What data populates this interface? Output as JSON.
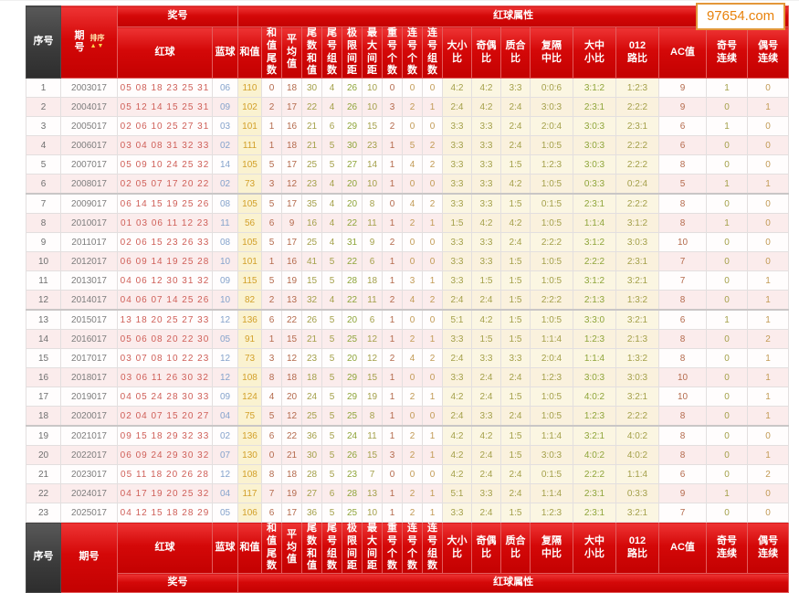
{
  "watermark": "97654.com",
  "header": {
    "xuhao": "序号",
    "qihao": "期号",
    "paixu": "排序",
    "sort_arrows": "▲▼",
    "jianghao": "奖号",
    "hongqiu": "红球",
    "lanqiu": "蓝球",
    "shuxing": "红球属性",
    "attr_cols": [
      [
        "和值"
      ],
      [
        "和值",
        "尾数"
      ],
      [
        "平均",
        "值"
      ],
      [
        "尾数",
        "和值"
      ],
      [
        "尾号",
        "组数"
      ],
      [
        "极限",
        "间距"
      ],
      [
        "最大",
        "间距"
      ],
      [
        "重号",
        "个数"
      ],
      [
        "连号",
        "个数"
      ],
      [
        "连号",
        "组数"
      ],
      [
        "大小",
        "比"
      ],
      [
        "奇偶",
        "比"
      ],
      [
        "质合",
        "比"
      ],
      [
        "复隔",
        "中比"
      ],
      [
        "大中",
        "小比"
      ],
      [
        "012",
        "路比"
      ],
      [
        "AC值"
      ],
      [
        "奇号",
        "连续"
      ],
      [
        "偶号",
        "连续"
      ]
    ]
  },
  "colors": {
    "header_red": "#d40808",
    "header_dark": "#3a3a3a",
    "red_ball": "#cf5f58",
    "blue_ball": "#85a3cc",
    "sum_text": "#d2a02a",
    "watermark": "#e8820c"
  },
  "rows": [
    [
      "1",
      "2003017",
      "05 08 18 23 25 31",
      "06",
      "110",
      "0",
      "18",
      "30",
      "4",
      "26",
      "10",
      "0",
      "0",
      "0",
      "4:2",
      "4:2",
      "3:3",
      "0:0:6",
      "3:1:2",
      "1:2:3",
      "9",
      "1",
      "0"
    ],
    [
      "2",
      "2004017",
      "05 12 14 15 25 31",
      "09",
      "102",
      "2",
      "17",
      "22",
      "4",
      "26",
      "10",
      "3",
      "2",
      "1",
      "2:4",
      "4:2",
      "2:4",
      "3:0:3",
      "2:3:1",
      "2:2:2",
      "9",
      "0",
      "1"
    ],
    [
      "3",
      "2005017",
      "02 06 10 25 27 31",
      "03",
      "101",
      "1",
      "16",
      "21",
      "6",
      "29",
      "15",
      "2",
      "0",
      "0",
      "3:3",
      "3:3",
      "2:4",
      "2:0:4",
      "3:0:3",
      "2:3:1",
      "6",
      "1",
      "0"
    ],
    [
      "4",
      "2006017",
      "03 04 08 31 32 33",
      "02",
      "111",
      "1",
      "18",
      "21",
      "5",
      "30",
      "23",
      "1",
      "5",
      "2",
      "3:3",
      "3:3",
      "2:4",
      "1:0:5",
      "3:0:3",
      "2:2:2",
      "6",
      "0",
      "0"
    ],
    [
      "5",
      "2007017",
      "05 09 10 24 25 32",
      "14",
      "105",
      "5",
      "17",
      "25",
      "5",
      "27",
      "14",
      "1",
      "4",
      "2",
      "3:3",
      "3:3",
      "1:5",
      "1:2:3",
      "3:0:3",
      "2:2:2",
      "8",
      "0",
      "0"
    ],
    [
      "6",
      "2008017",
      "02 05 07 17 20 22",
      "02",
      "73",
      "3",
      "12",
      "23",
      "4",
      "20",
      "10",
      "1",
      "0",
      "0",
      "3:3",
      "3:3",
      "4:2",
      "1:0:5",
      "0:3:3",
      "0:2:4",
      "5",
      "1",
      "1"
    ],
    [
      "7",
      "2009017",
      "06 14 15 19 25 26",
      "08",
      "105",
      "5",
      "17",
      "35",
      "4",
      "20",
      "8",
      "0",
      "4",
      "2",
      "3:3",
      "3:3",
      "1:5",
      "0:1:5",
      "2:3:1",
      "2:2:2",
      "8",
      "0",
      "0"
    ],
    [
      "8",
      "2010017",
      "01 03 06 11 12 23",
      "11",
      "56",
      "6",
      "9",
      "16",
      "4",
      "22",
      "11",
      "1",
      "2",
      "1",
      "1:5",
      "4:2",
      "4:2",
      "1:0:5",
      "1:1:4",
      "3:1:2",
      "8",
      "1",
      "0"
    ],
    [
      "9",
      "2011017",
      "02 06 15 23 26 33",
      "08",
      "105",
      "5",
      "17",
      "25",
      "4",
      "31",
      "9",
      "2",
      "0",
      "0",
      "3:3",
      "3:3",
      "2:4",
      "2:2:2",
      "3:1:2",
      "3:0:3",
      "10",
      "0",
      "0"
    ],
    [
      "10",
      "2012017",
      "06 09 14 19 25 28",
      "10",
      "101",
      "1",
      "16",
      "41",
      "5",
      "22",
      "6",
      "1",
      "0",
      "0",
      "3:3",
      "3:3",
      "1:5",
      "1:0:5",
      "2:2:2",
      "2:3:1",
      "7",
      "0",
      "0"
    ],
    [
      "11",
      "2013017",
      "04 06 12 30 31 32",
      "09",
      "115",
      "5",
      "19",
      "15",
      "5",
      "28",
      "18",
      "1",
      "3",
      "1",
      "3:3",
      "1:5",
      "1:5",
      "1:0:5",
      "3:1:2",
      "3:2:1",
      "7",
      "0",
      "1"
    ],
    [
      "12",
      "2014017",
      "04 06 07 14 25 26",
      "10",
      "82",
      "2",
      "13",
      "32",
      "4",
      "22",
      "11",
      "2",
      "4",
      "2",
      "2:4",
      "2:4",
      "1:5",
      "2:2:2",
      "2:1:3",
      "1:3:2",
      "8",
      "0",
      "1"
    ],
    [
      "13",
      "2015017",
      "13 18 20 25 27 33",
      "12",
      "136",
      "6",
      "22",
      "26",
      "5",
      "20",
      "6",
      "1",
      "0",
      "0",
      "5:1",
      "4:2",
      "1:5",
      "1:0:5",
      "3:3:0",
      "3:2:1",
      "6",
      "1",
      "1"
    ],
    [
      "14",
      "2016017",
      "05 06 08 20 22 30",
      "05",
      "91",
      "1",
      "15",
      "21",
      "5",
      "25",
      "12",
      "1",
      "2",
      "1",
      "3:3",
      "1:5",
      "1:5",
      "1:1:4",
      "1:2:3",
      "2:1:3",
      "8",
      "0",
      "2"
    ],
    [
      "15",
      "2017017",
      "03 07 08 10 22 23",
      "12",
      "73",
      "3",
      "12",
      "23",
      "5",
      "20",
      "12",
      "2",
      "4",
      "2",
      "2:4",
      "3:3",
      "3:3",
      "2:0:4",
      "1:1:4",
      "1:3:2",
      "8",
      "0",
      "1"
    ],
    [
      "16",
      "2018017",
      "03 06 11 26 30 32",
      "12",
      "108",
      "8",
      "18",
      "18",
      "5",
      "29",
      "15",
      "1",
      "0",
      "0",
      "3:3",
      "2:4",
      "2:4",
      "1:2:3",
      "3:0:3",
      "3:0:3",
      "10",
      "0",
      "1"
    ],
    [
      "17",
      "2019017",
      "04 05 24 28 30 33",
      "09",
      "124",
      "4",
      "20",
      "24",
      "5",
      "29",
      "19",
      "1",
      "2",
      "1",
      "4:2",
      "2:4",
      "1:5",
      "1:0:5",
      "4:0:2",
      "3:2:1",
      "10",
      "0",
      "1"
    ],
    [
      "18",
      "2020017",
      "02 04 07 15 20 27",
      "04",
      "75",
      "5",
      "12",
      "25",
      "5",
      "25",
      "8",
      "1",
      "0",
      "0",
      "2:4",
      "3:3",
      "2:4",
      "1:0:5",
      "1:2:3",
      "2:2:2",
      "8",
      "0",
      "1"
    ],
    [
      "19",
      "2021017",
      "09 15 18 29 32 33",
      "02",
      "136",
      "6",
      "22",
      "36",
      "5",
      "24",
      "11",
      "1",
      "2",
      "1",
      "4:2",
      "4:2",
      "1:5",
      "1:1:4",
      "3:2:1",
      "4:0:2",
      "8",
      "0",
      "0"
    ],
    [
      "20",
      "2022017",
      "06 09 24 29 30 32",
      "07",
      "130",
      "0",
      "21",
      "30",
      "5",
      "26",
      "15",
      "3",
      "2",
      "1",
      "4:2",
      "2:4",
      "1:5",
      "3:0:3",
      "4:0:2",
      "4:0:2",
      "8",
      "0",
      "1"
    ],
    [
      "21",
      "2023017",
      "05 11 18 20 26 28",
      "12",
      "108",
      "8",
      "18",
      "28",
      "5",
      "23",
      "7",
      "0",
      "0",
      "0",
      "4:2",
      "2:4",
      "2:4",
      "0:1:5",
      "2:2:2",
      "1:1:4",
      "6",
      "0",
      "2"
    ],
    [
      "22",
      "2024017",
      "04 17 19 20 25 32",
      "04",
      "117",
      "7",
      "19",
      "27",
      "6",
      "28",
      "13",
      "1",
      "2",
      "1",
      "5:1",
      "3:3",
      "2:4",
      "1:1:4",
      "2:3:1",
      "0:3:3",
      "9",
      "1",
      "0"
    ],
    [
      "23",
      "2025017",
      "04 12 15 18 28 29",
      "05",
      "106",
      "6",
      "17",
      "36",
      "5",
      "25",
      "10",
      "1",
      "2",
      "1",
      "3:3",
      "2:4",
      "1:5",
      "1:2:3",
      "2:3:1",
      "3:2:1",
      "7",
      "0",
      "0"
    ]
  ]
}
